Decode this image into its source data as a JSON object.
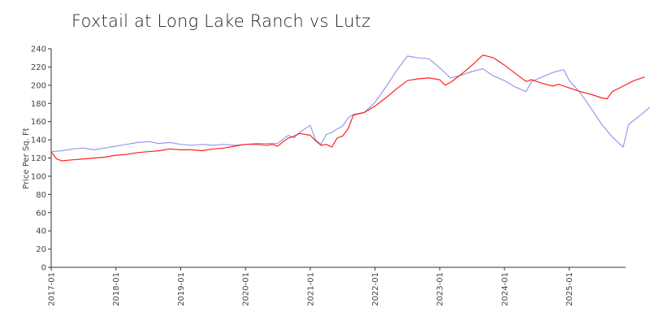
{
  "chart_data": {
    "type": "line",
    "title": "Foxtail at Long Lake Ranch vs Lutz",
    "xlabel": "",
    "ylabel": "Price Per Sq. Ft",
    "ylim": [
      0,
      240
    ],
    "yticks": [
      "0",
      "20",
      "40",
      "60",
      "80",
      "100",
      "120",
      "140",
      "160",
      "180",
      "200",
      "220",
      "240"
    ],
    "xticks": [
      "2017-01",
      "2018-01",
      "2019-01",
      "2020-01",
      "2021-01",
      "2022-01",
      "2023-01",
      "2024-01",
      "2025-01"
    ],
    "legend": "none",
    "grid": false,
    "colors": {
      "foxtail": "#ff2020",
      "lutz": "#9999ee"
    },
    "series": [
      {
        "color": "#ff2020",
        "values": [
          [
            "2017-01",
            127
          ],
          [
            "2017-02",
            119
          ],
          [
            "2017-03",
            117
          ],
          [
            "2017-05",
            118
          ],
          [
            "2017-07",
            119
          ],
          [
            "2017-09",
            120
          ],
          [
            "2017-11",
            121
          ],
          [
            "2018-01",
            123
          ],
          [
            "2018-03",
            124
          ],
          [
            "2018-05",
            126
          ],
          [
            "2018-07",
            127
          ],
          [
            "2018-09",
            128
          ],
          [
            "2018-11",
            130
          ],
          [
            "2019-01",
            129
          ],
          [
            "2019-03",
            129
          ],
          [
            "2019-05",
            128
          ],
          [
            "2019-07",
            130
          ],
          [
            "2019-09",
            131
          ],
          [
            "2019-11",
            133
          ],
          [
            "2020-01",
            135
          ],
          [
            "2020-03",
            135
          ],
          [
            "2020-05",
            134
          ],
          [
            "2020-06",
            135
          ],
          [
            "2020-07",
            133
          ],
          [
            "2020-08",
            138
          ],
          [
            "2020-09",
            142
          ],
          [
            "2020-10",
            144
          ],
          [
            "2020-11",
            147
          ],
          [
            "2021-01",
            145
          ],
          [
            "2021-02",
            139
          ],
          [
            "2021-03",
            134
          ],
          [
            "2021-04",
            135
          ],
          [
            "2021-05",
            132
          ],
          [
            "2021-06",
            142
          ],
          [
            "2021-07",
            144
          ],
          [
            "2021-08",
            152
          ],
          [
            "2021-09",
            167
          ],
          [
            "2021-11",
            170
          ],
          [
            "2022-01",
            177
          ],
          [
            "2022-03",
            186
          ],
          [
            "2022-05",
            196
          ],
          [
            "2022-07",
            205
          ],
          [
            "2022-09",
            207
          ],
          [
            "2022-11",
            208
          ],
          [
            "2023-01",
            206
          ],
          [
            "2023-02",
            200
          ],
          [
            "2023-03",
            203
          ],
          [
            "2023-05",
            212
          ],
          [
            "2023-07",
            222
          ],
          [
            "2023-09",
            233
          ],
          [
            "2023-11",
            230
          ],
          [
            "2024-01",
            222
          ],
          [
            "2024-03",
            213
          ],
          [
            "2024-05",
            204
          ],
          [
            "2024-06",
            206
          ],
          [
            "2024-08",
            202
          ],
          [
            "2024-10",
            199
          ],
          [
            "2024-11",
            201
          ],
          [
            "2025-01",
            197
          ],
          [
            "2025-03",
            193
          ],
          [
            "2025-05",
            190
          ],
          [
            "2025-07",
            186
          ],
          [
            "2025-08",
            185
          ],
          [
            "2025-09",
            193
          ],
          [
            "2025-11",
            199
          ],
          [
            "2026-01",
            205
          ],
          [
            "2026-03",
            209
          ]
        ]
      },
      {
        "color": "#9999ee",
        "values": [
          [
            "2017-01",
            127
          ],
          [
            "2017-03",
            128
          ],
          [
            "2017-05",
            130
          ],
          [
            "2017-07",
            131
          ],
          [
            "2017-09",
            129
          ],
          [
            "2017-11",
            131
          ],
          [
            "2018-01",
            133
          ],
          [
            "2018-03",
            135
          ],
          [
            "2018-05",
            137
          ],
          [
            "2018-07",
            138
          ],
          [
            "2018-09",
            136
          ],
          [
            "2018-11",
            137
          ],
          [
            "2019-01",
            135
          ],
          [
            "2019-03",
            134
          ],
          [
            "2019-05",
            135
          ],
          [
            "2019-07",
            134
          ],
          [
            "2019-09",
            135
          ],
          [
            "2019-11",
            134
          ],
          [
            "2020-01",
            135
          ],
          [
            "2020-03",
            136
          ],
          [
            "2020-05",
            136
          ],
          [
            "2020-07",
            136
          ],
          [
            "2020-08",
            141
          ],
          [
            "2020-09",
            145
          ],
          [
            "2020-10",
            142
          ],
          [
            "2020-11",
            148
          ],
          [
            "2021-01",
            156
          ],
          [
            "2021-02",
            140
          ],
          [
            "2021-03",
            135
          ],
          [
            "2021-04",
            146
          ],
          [
            "2021-05",
            148
          ],
          [
            "2021-06",
            152
          ],
          [
            "2021-07",
            155
          ],
          [
            "2021-08",
            164
          ],
          [
            "2021-09",
            168
          ],
          [
            "2021-11",
            170
          ],
          [
            "2022-01",
            181
          ],
          [
            "2022-03",
            198
          ],
          [
            "2022-05",
            216
          ],
          [
            "2022-07",
            232
          ],
          [
            "2022-09",
            230
          ],
          [
            "2022-11",
            229
          ],
          [
            "2023-01",
            219
          ],
          [
            "2023-03",
            208
          ],
          [
            "2023-05",
            211
          ],
          [
            "2023-07",
            215
          ],
          [
            "2023-09",
            218
          ],
          [
            "2023-11",
            210
          ],
          [
            "2024-01",
            205
          ],
          [
            "2024-03",
            198
          ],
          [
            "2024-05",
            193
          ],
          [
            "2024-06",
            204
          ],
          [
            "2024-08",
            209
          ],
          [
            "2024-10",
            214
          ],
          [
            "2024-12",
            217
          ],
          [
            "2025-01",
            205
          ],
          [
            "2025-03",
            192
          ],
          [
            "2025-05",
            175
          ],
          [
            "2025-07",
            157
          ],
          [
            "2025-09",
            143
          ],
          [
            "2025-11",
            132
          ],
          [
            "2025-12",
            157
          ],
          [
            "2026-02",
            166
          ],
          [
            "2026-04",
            176
          ],
          [
            "2026-06",
            184
          ]
        ]
      }
    ]
  }
}
